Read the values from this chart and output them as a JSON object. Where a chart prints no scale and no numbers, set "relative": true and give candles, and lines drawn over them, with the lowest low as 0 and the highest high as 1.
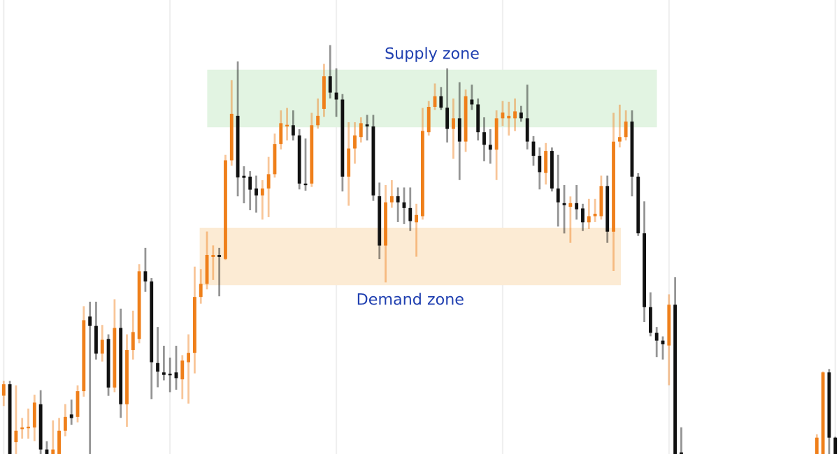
{
  "chart_data": {
    "type": "candlestick",
    "relative": true,
    "grid": true,
    "categories": [
      null,
      null,
      null,
      null,
      null,
      null,
      null,
      null,
      null,
      null,
      null,
      null,
      null,
      null,
      null,
      null,
      null,
      null,
      null,
      null,
      null,
      null,
      null,
      null,
      null,
      null,
      null,
      null,
      null,
      null,
      null,
      null,
      null,
      null,
      null,
      null,
      null,
      null,
      null,
      null,
      null,
      null,
      null,
      null,
      null,
      null,
      null,
      null,
      null,
      null,
      null,
      null,
      null,
      null,
      null,
      null,
      null,
      null,
      null,
      null,
      null,
      null,
      null,
      null,
      null,
      null,
      null,
      null,
      null,
      null,
      null,
      null,
      null,
      null,
      null,
      null,
      null,
      null,
      null,
      null,
      null,
      null,
      null,
      null,
      null,
      null,
      null,
      null,
      null,
      null,
      null,
      null,
      null,
      null,
      null,
      null,
      null,
      null,
      null,
      null,
      null,
      null,
      null,
      null,
      null,
      null,
      null,
      null,
      null,
      null,
      null,
      null,
      null,
      null,
      null,
      null,
      null,
      null,
      null,
      null,
      null,
      null,
      null,
      null,
      null,
      null,
      null,
      null,
      null,
      null,
      null,
      null,
      null,
      null,
      null,
      null
    ],
    "ohlc": [
      [
        0.143,
        0.177,
        0.12,
        0.171
      ],
      [
        0.171,
        0.177,
        0,
        0
      ],
      [
        0.029,
        0.166,
        0,
        0.057
      ],
      [
        0.061,
        0.086,
        0.04,
        0.065
      ],
      [
        0.063,
        0.109,
        0.04,
        0.065
      ],
      [
        0.065,
        0.143,
        0.034,
        0.126
      ],
      [
        0.122,
        0.154,
        0,
        0.011
      ],
      [
        0.011,
        0.029,
        0,
        0
      ],
      [
        0,
        0.08,
        0,
        0.011
      ],
      [
        0,
        0.086,
        0,
        0.057
      ],
      [
        0.057,
        0.12,
        0.046,
        0.091
      ],
      [
        0.097,
        0.131,
        0.074,
        0.088
      ],
      [
        0.091,
        0.166,
        0.08,
        0.154
      ],
      [
        0.154,
        0.36,
        0.143,
        0.328
      ],
      [
        0.337,
        0.371,
        0,
        0.314
      ],
      [
        0.314,
        0.371,
        0.234,
        0.246
      ],
      [
        0.246,
        0.314,
        0.229,
        0.28
      ],
      [
        0.282,
        0.291,
        0.145,
        0.163
      ],
      [
        0.163,
        0.377,
        0.154,
        0.309
      ],
      [
        0.309,
        0.354,
        0.091,
        0.122
      ],
      [
        0.122,
        0.291,
        0.069,
        0.255
      ],
      [
        0.255,
        0.349,
        0.234,
        0.299
      ],
      [
        0.282,
        0.463,
        0.274,
        0.448
      ],
      [
        0.448,
        0.503,
        0.4,
        0.423
      ],
      [
        0.423,
        0.429,
        0.137,
        0.225
      ],
      [
        0.223,
        0.309,
        0.166,
        0.202
      ],
      [
        0.2,
        0.263,
        0.183,
        0.194
      ],
      [
        0.197,
        0.234,
        0.154,
        0.193
      ],
      [
        0.2,
        0.263,
        0.16,
        0.186
      ],
      [
        0.183,
        0.24,
        0.137,
        0.229
      ],
      [
        0.225,
        0.291,
        0.126,
        0.248
      ],
      [
        0.248,
        0.457,
        0.2,
        0.385
      ],
      [
        0.385,
        0.451,
        0.371,
        0.417
      ],
      [
        0.417,
        0.543,
        0.406,
        0.488
      ],
      [
        0.483,
        0.509,
        0.429,
        0.488
      ],
      [
        0.488,
        0.503,
        0.389,
        0.483
      ],
      [
        0.478,
        0.731,
        0.478,
        0.72
      ],
      [
        0.72,
        0.914,
        0.709,
        0.834
      ],
      [
        0.829,
        0.96,
        0.634,
        0.678
      ],
      [
        0.682,
        0.703,
        0.617,
        0.677
      ],
      [
        0.68,
        0.691,
        0.6,
        0.648
      ],
      [
        0.651,
        0.68,
        0.594,
        0.634
      ],
      [
        0.634,
        0.669,
        0.577,
        0.651
      ],
      [
        0.651,
        0.726,
        0.583,
        0.686
      ],
      [
        0.686,
        0.783,
        0.68,
        0.76
      ],
      [
        0.76,
        0.84,
        0.749,
        0.811
      ],
      [
        0.803,
        0.846,
        0.771,
        0.806
      ],
      [
        0.806,
        0.84,
        0.771,
        0.781
      ],
      [
        0.781,
        0.794,
        0.651,
        0.663
      ],
      [
        0.663,
        0.771,
        0.648,
        0.659
      ],
      [
        0.663,
        0.834,
        0.657,
        0.806
      ],
      [
        0.806,
        0.869,
        0.8,
        0.829
      ],
      [
        0.846,
        0.954,
        0.829,
        0.926
      ],
      [
        0.926,
        1,
        0.874,
        0.886
      ],
      [
        0.886,
        0.943,
        0.829,
        0.869
      ],
      [
        0.869,
        0.88,
        0.646,
        0.68
      ],
      [
        0.68,
        0.811,
        0.611,
        0.749
      ],
      [
        0.749,
        0.811,
        0.714,
        0.781
      ],
      [
        0.777,
        0.823,
        0.766,
        0.811
      ],
      [
        0.808,
        0.829,
        0.771,
        0.803
      ],
      [
        0.803,
        0.829,
        0.623,
        0.634
      ],
      [
        0.632,
        0.663,
        0.48,
        0.511
      ],
      [
        0.511,
        0.657,
        0.423,
        0.617
      ],
      [
        0.617,
        0.669,
        0.606,
        0.632
      ],
      [
        0.632,
        0.651,
        0.571,
        0.617
      ],
      [
        0.617,
        0.651,
        0.566,
        0.603
      ],
      [
        0.603,
        0.651,
        0.549,
        0.571
      ],
      [
        0.568,
        0.611,
        0.486,
        0.586
      ],
      [
        0.583,
        0.846,
        0.577,
        0.792
      ],
      [
        0.789,
        0.863,
        0.783,
        0.851
      ],
      [
        0.851,
        0.906,
        0.846,
        0.877
      ],
      [
        0.877,
        0.897,
        0.846,
        0.849
      ],
      [
        0.849,
        0.943,
        0.766,
        0.797
      ],
      [
        0.797,
        0.869,
        0.726,
        0.823
      ],
      [
        0.823,
        0.909,
        0.674,
        0.766
      ],
      [
        0.766,
        0.891,
        0.743,
        0.877
      ],
      [
        0.869,
        0.903,
        0.846,
        0.857
      ],
      [
        0.857,
        0.869,
        0.771,
        0.789
      ],
      [
        0.789,
        0.823,
        0.72,
        0.758
      ],
      [
        0.758,
        0.794,
        0.714,
        0.746
      ],
      [
        0.746,
        0.84,
        0.674,
        0.823
      ],
      [
        0.823,
        0.863,
        0.806,
        0.837
      ],
      [
        0.823,
        0.861,
        0.783,
        0.829
      ],
      [
        0.823,
        0.869,
        0.794,
        0.84
      ],
      [
        0.837,
        0.851,
        0.817,
        0.823
      ],
      [
        0.823,
        0.903,
        0.749,
        0.766
      ],
      [
        0.766,
        0.777,
        0.709,
        0.731
      ],
      [
        0.731,
        0.749,
        0.651,
        0.691
      ],
      [
        0.689,
        0.76,
        0.663,
        0.743
      ],
      [
        0.743,
        0.749,
        0.646,
        0.651
      ],
      [
        0.651,
        0.731,
        0.56,
        0.617
      ],
      [
        0.615,
        0.657,
        0.543,
        0.61
      ],
      [
        0.606,
        0.629,
        0.52,
        0.615
      ],
      [
        0.615,
        0.657,
        0.577,
        0.6
      ],
      [
        0.602,
        0.611,
        0.549,
        0.568
      ],
      [
        0.568,
        0.623,
        0.554,
        0.583
      ],
      [
        0.583,
        0.623,
        0.571,
        0.589
      ],
      [
        0.583,
        0.68,
        0.577,
        0.657
      ],
      [
        0.657,
        0.68,
        0.52,
        0.545
      ],
      [
        0.545,
        0.834,
        0.451,
        0.766
      ],
      [
        0.766,
        0.854,
        0.754,
        0.777
      ],
      [
        0.777,
        0.84,
        0.771,
        0.815
      ],
      [
        0.815,
        0.84,
        0.634,
        0.68
      ],
      [
        0.68,
        0.686,
        0.537,
        0.541
      ],
      [
        0.541,
        0.617,
        0.326,
        0.36
      ],
      [
        0.36,
        0.394,
        0.291,
        0.297
      ],
      [
        0.297,
        0.309,
        0.24,
        0.278
      ],
      [
        0.278,
        0.286,
        0.234,
        0.269
      ],
      [
        0.266,
        0.389,
        0.171,
        0.366
      ],
      [
        0.366,
        0.431,
        0,
        0
      ],
      [
        0,
        0.063,
        0,
        0
      ],
      null,
      null,
      null,
      null,
      null,
      null,
      null,
      null,
      null,
      null,
      null,
      null,
      null,
      null,
      null,
      null,
      null,
      null,
      null,
      null,
      null,
      [
        0,
        0.046,
        0,
        0.04
      ],
      [
        0,
        0.2,
        0,
        0.2
      ],
      [
        0.2,
        0.206,
        0,
        0.04
      ],
      [
        0.04,
        0.04,
        0,
        0
      ]
    ],
    "colors": [
      "#ef7f1a",
      "#111111",
      "#ef7f1a",
      "#ef7f1a",
      "#ef7f1a",
      "#ef7f1a",
      "#111111",
      "#111111",
      "#ef7f1a",
      "#ef7f1a",
      "#ef7f1a",
      "#111111",
      "#ef7f1a",
      "#ef7f1a",
      "#111111",
      "#111111",
      "#ef7f1a",
      "#111111",
      "#ef7f1a",
      "#111111",
      "#ef7f1a",
      "#ef7f1a",
      "#ef7f1a",
      "#111111",
      "#111111",
      "#111111",
      "#111111",
      "#111111",
      "#111111",
      "#ef7f1a",
      "#ef7f1a",
      "#ef7f1a",
      "#ef7f1a",
      "#ef7f1a",
      "#ef7f1a",
      "#111111",
      "#ef7f1a",
      "#ef7f1a",
      "#111111",
      "#111111",
      "#111111",
      "#111111",
      "#ef7f1a",
      "#ef7f1a",
      "#ef7f1a",
      "#ef7f1a",
      "#ef7f1a",
      "#111111",
      "#111111",
      "#111111",
      "#ef7f1a",
      "#ef7f1a",
      "#ef7f1a",
      "#111111",
      "#111111",
      "#111111",
      "#ef7f1a",
      "#ef7f1a",
      "#ef7f1a",
      "#111111",
      "#111111",
      "#111111",
      "#ef7f1a",
      "#ef7f1a",
      "#111111",
      "#111111",
      "#111111",
      "#ef7f1a",
      "#ef7f1a",
      "#ef7f1a",
      "#ef7f1a",
      "#111111",
      "#111111",
      "#ef7f1a",
      "#111111",
      "#ef7f1a",
      "#111111",
      "#111111",
      "#111111",
      "#111111",
      "#ef7f1a",
      "#ef7f1a",
      "#ef7f1a",
      "#ef7f1a",
      "#111111",
      "#111111",
      "#111111",
      "#111111",
      "#ef7f1a",
      "#111111",
      "#111111",
      "#111111",
      "#ef7f1a",
      "#111111",
      "#111111",
      "#ef7f1a",
      "#ef7f1a",
      "#ef7f1a",
      "#111111",
      "#ef7f1a",
      "#ef7f1a",
      "#ef7f1a",
      "#111111",
      "#111111",
      "#111111",
      "#111111",
      "#111111",
      "#111111",
      "#ef7f1a",
      "#111111",
      "#111111",
      null,
      null,
      null,
      null,
      null,
      null,
      null,
      null,
      null,
      null,
      null,
      null,
      null,
      null,
      null,
      null,
      null,
      null,
      null,
      null,
      null,
      "#ef7f1a",
      "#ef7f1a",
      "#111111",
      "#111111"
    ],
    "bands": [
      {
        "axis": "y",
        "from": 0.801,
        "to": 0.942,
        "label": "Supply zone",
        "color": "#e2f4e2"
      },
      {
        "axis": "y",
        "from": 0.414,
        "to": 0.555,
        "label": "Demand zone",
        "color": "#fcebd4"
      }
    ]
  }
}
